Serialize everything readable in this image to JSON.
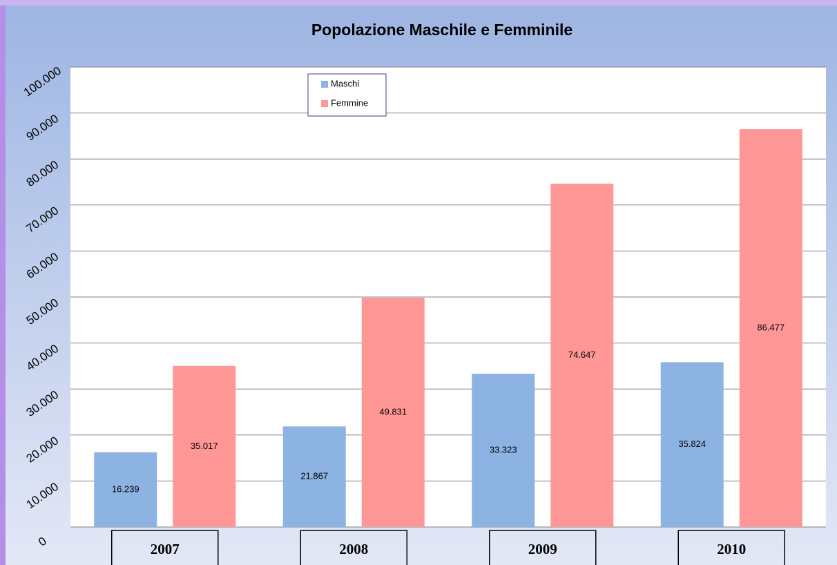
{
  "chart_data": {
    "type": "bar",
    "title": "Popolazione Maschile e Femminile",
    "categories": [
      "2007",
      "2008",
      "2009",
      "2010"
    ],
    "series": [
      {
        "name": "Maschi",
        "color": "#8db3e2",
        "values": [
          16239,
          21867,
          33323,
          35824
        ],
        "value_labels": [
          "16.239",
          "21.867",
          "33.323",
          "35.824"
        ]
      },
      {
        "name": "Femmine",
        "color": "#ff9797",
        "values": [
          35017,
          49831,
          74647,
          86477
        ],
        "value_labels": [
          "35.017",
          "49.831",
          "74.647",
          "86.477"
        ]
      }
    ],
    "ylim": [
      0,
      100000
    ],
    "yticks": [
      0,
      {
        "value": 10000,
        "label": "10.000"
      },
      {
        "value": 20000,
        "label": "20.000"
      },
      {
        "value": 30000,
        "label": "30.000"
      },
      {
        "value": 40000,
        "label": "40.000"
      },
      {
        "value": 50000,
        "label": "50.000"
      },
      {
        "value": 60000,
        "label": "60.000"
      },
      {
        "value": 70000,
        "label": "70.000"
      },
      {
        "value": 80000,
        "label": "80.000"
      },
      {
        "value": 90000,
        "label": "90.000"
      },
      {
        "value": 100000,
        "label": "100.000"
      }
    ],
    "grid": true,
    "legend": "top"
  }
}
